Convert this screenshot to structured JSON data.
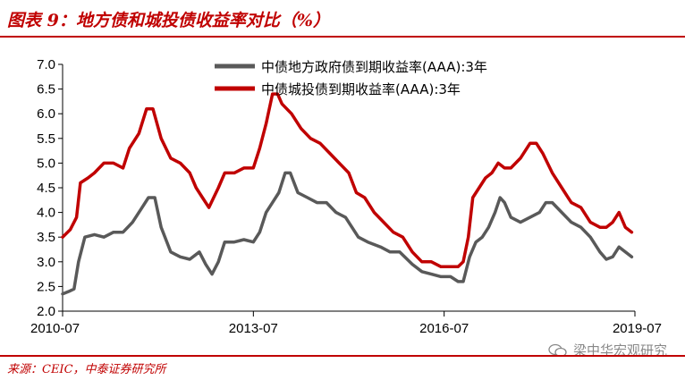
{
  "header": {
    "title": "图表 9：地方债和城投债收益率对比（%）"
  },
  "footer": {
    "source": "来源：CEIC，中泰证券研究所",
    "watermark": "梁中华宏观研究"
  },
  "chart_data": {
    "type": "line",
    "title": "",
    "xlabel": "",
    "ylabel": "",
    "ylim": [
      2.0,
      7.0
    ],
    "yticks": [
      "7.0",
      "6.5",
      "6.0",
      "5.5",
      "5.0",
      "4.5",
      "4.0",
      "3.5",
      "3.0",
      "2.5",
      "2.0"
    ],
    "xticks": [
      "2010-07",
      "2013-07",
      "2016-07",
      "2019-07"
    ],
    "xrange": [
      2010.5,
      2019.5
    ],
    "legend_position": "top-right",
    "series": [
      {
        "name": "中债地方政府债到期收益率(AAA):3年",
        "color": "#595959",
        "points": [
          [
            2010.5,
            2.35
          ],
          [
            2010.6,
            2.4
          ],
          [
            2010.68,
            2.45
          ],
          [
            2010.75,
            3.0
          ],
          [
            2010.85,
            3.5
          ],
          [
            2011.0,
            3.55
          ],
          [
            2011.15,
            3.5
          ],
          [
            2011.3,
            3.6
          ],
          [
            2011.45,
            3.6
          ],
          [
            2011.6,
            3.8
          ],
          [
            2011.75,
            4.1
          ],
          [
            2011.85,
            4.3
          ],
          [
            2011.95,
            4.3
          ],
          [
            2012.05,
            3.7
          ],
          [
            2012.2,
            3.2
          ],
          [
            2012.35,
            3.1
          ],
          [
            2012.5,
            3.05
          ],
          [
            2012.65,
            3.2
          ],
          [
            2012.75,
            2.95
          ],
          [
            2012.85,
            2.75
          ],
          [
            2012.95,
            3.0
          ],
          [
            2013.05,
            3.4
          ],
          [
            2013.2,
            3.4
          ],
          [
            2013.35,
            3.45
          ],
          [
            2013.5,
            3.4
          ],
          [
            2013.6,
            3.6
          ],
          [
            2013.7,
            4.0
          ],
          [
            2013.8,
            4.2
          ],
          [
            2013.9,
            4.4
          ],
          [
            2014.0,
            4.8
          ],
          [
            2014.08,
            4.8
          ],
          [
            2014.2,
            4.4
          ],
          [
            2014.35,
            4.3
          ],
          [
            2014.5,
            4.2
          ],
          [
            2014.65,
            4.2
          ],
          [
            2014.8,
            4.0
          ],
          [
            2014.95,
            3.9
          ],
          [
            2015.05,
            3.7
          ],
          [
            2015.15,
            3.5
          ],
          [
            2015.3,
            3.4
          ],
          [
            2015.5,
            3.3
          ],
          [
            2015.65,
            3.2
          ],
          [
            2015.8,
            3.2
          ],
          [
            2016.0,
            2.95
          ],
          [
            2016.15,
            2.8
          ],
          [
            2016.3,
            2.75
          ],
          [
            2016.45,
            2.7
          ],
          [
            2016.6,
            2.7
          ],
          [
            2016.72,
            2.6
          ],
          [
            2016.8,
            2.6
          ],
          [
            2016.9,
            3.1
          ],
          [
            2017.0,
            3.4
          ],
          [
            2017.1,
            3.5
          ],
          [
            2017.2,
            3.7
          ],
          [
            2017.3,
            4.0
          ],
          [
            2017.38,
            4.3
          ],
          [
            2017.45,
            4.2
          ],
          [
            2017.55,
            3.9
          ],
          [
            2017.7,
            3.8
          ],
          [
            2017.85,
            3.9
          ],
          [
            2018.0,
            4.0
          ],
          [
            2018.1,
            4.2
          ],
          [
            2018.2,
            4.2
          ],
          [
            2018.35,
            4.0
          ],
          [
            2018.5,
            3.8
          ],
          [
            2018.65,
            3.7
          ],
          [
            2018.8,
            3.5
          ],
          [
            2018.95,
            3.2
          ],
          [
            2019.05,
            3.05
          ],
          [
            2019.15,
            3.1
          ],
          [
            2019.25,
            3.3
          ],
          [
            2019.35,
            3.2
          ],
          [
            2019.45,
            3.1
          ]
        ]
      },
      {
        "name": "中债城投债到期收益率(AAA):3年",
        "color": "#c00000",
        "points": [
          [
            2010.5,
            3.5
          ],
          [
            2010.62,
            3.65
          ],
          [
            2010.72,
            3.9
          ],
          [
            2010.78,
            4.6
          ],
          [
            2010.9,
            4.7
          ],
          [
            2011.0,
            4.8
          ],
          [
            2011.15,
            5.0
          ],
          [
            2011.3,
            5.0
          ],
          [
            2011.45,
            4.9
          ],
          [
            2011.55,
            5.3
          ],
          [
            2011.7,
            5.6
          ],
          [
            2011.82,
            6.1
          ],
          [
            2011.92,
            6.1
          ],
          [
            2012.05,
            5.5
          ],
          [
            2012.2,
            5.1
          ],
          [
            2012.35,
            5.0
          ],
          [
            2012.5,
            4.8
          ],
          [
            2012.6,
            4.5
          ],
          [
            2012.7,
            4.3
          ],
          [
            2012.8,
            4.1
          ],
          [
            2012.95,
            4.5
          ],
          [
            2013.05,
            4.8
          ],
          [
            2013.2,
            4.8
          ],
          [
            2013.35,
            4.9
          ],
          [
            2013.5,
            4.9
          ],
          [
            2013.6,
            5.3
          ],
          [
            2013.7,
            5.8
          ],
          [
            2013.8,
            6.4
          ],
          [
            2013.88,
            6.4
          ],
          [
            2013.95,
            6.2
          ],
          [
            2014.1,
            6.0
          ],
          [
            2014.25,
            5.7
          ],
          [
            2014.4,
            5.5
          ],
          [
            2014.55,
            5.4
          ],
          [
            2014.7,
            5.2
          ],
          [
            2014.85,
            5.0
          ],
          [
            2015.0,
            4.8
          ],
          [
            2015.12,
            4.4
          ],
          [
            2015.25,
            4.3
          ],
          [
            2015.4,
            4.0
          ],
          [
            2015.55,
            3.8
          ],
          [
            2015.7,
            3.6
          ],
          [
            2015.85,
            3.5
          ],
          [
            2016.0,
            3.2
          ],
          [
            2016.15,
            3.0
          ],
          [
            2016.3,
            3.0
          ],
          [
            2016.45,
            2.9
          ],
          [
            2016.6,
            2.9
          ],
          [
            2016.72,
            2.9
          ],
          [
            2016.8,
            3.0
          ],
          [
            2016.88,
            3.5
          ],
          [
            2016.95,
            4.3
          ],
          [
            2017.05,
            4.5
          ],
          [
            2017.15,
            4.7
          ],
          [
            2017.25,
            4.8
          ],
          [
            2017.35,
            5.0
          ],
          [
            2017.45,
            4.9
          ],
          [
            2017.55,
            4.9
          ],
          [
            2017.7,
            5.1
          ],
          [
            2017.85,
            5.4
          ],
          [
            2017.95,
            5.4
          ],
          [
            2018.05,
            5.2
          ],
          [
            2018.2,
            4.8
          ],
          [
            2018.35,
            4.5
          ],
          [
            2018.5,
            4.2
          ],
          [
            2018.65,
            4.1
          ],
          [
            2018.8,
            3.8
          ],
          [
            2018.95,
            3.7
          ],
          [
            2019.05,
            3.7
          ],
          [
            2019.15,
            3.8
          ],
          [
            2019.25,
            4.0
          ],
          [
            2019.35,
            3.7
          ],
          [
            2019.45,
            3.6
          ]
        ]
      }
    ]
  }
}
